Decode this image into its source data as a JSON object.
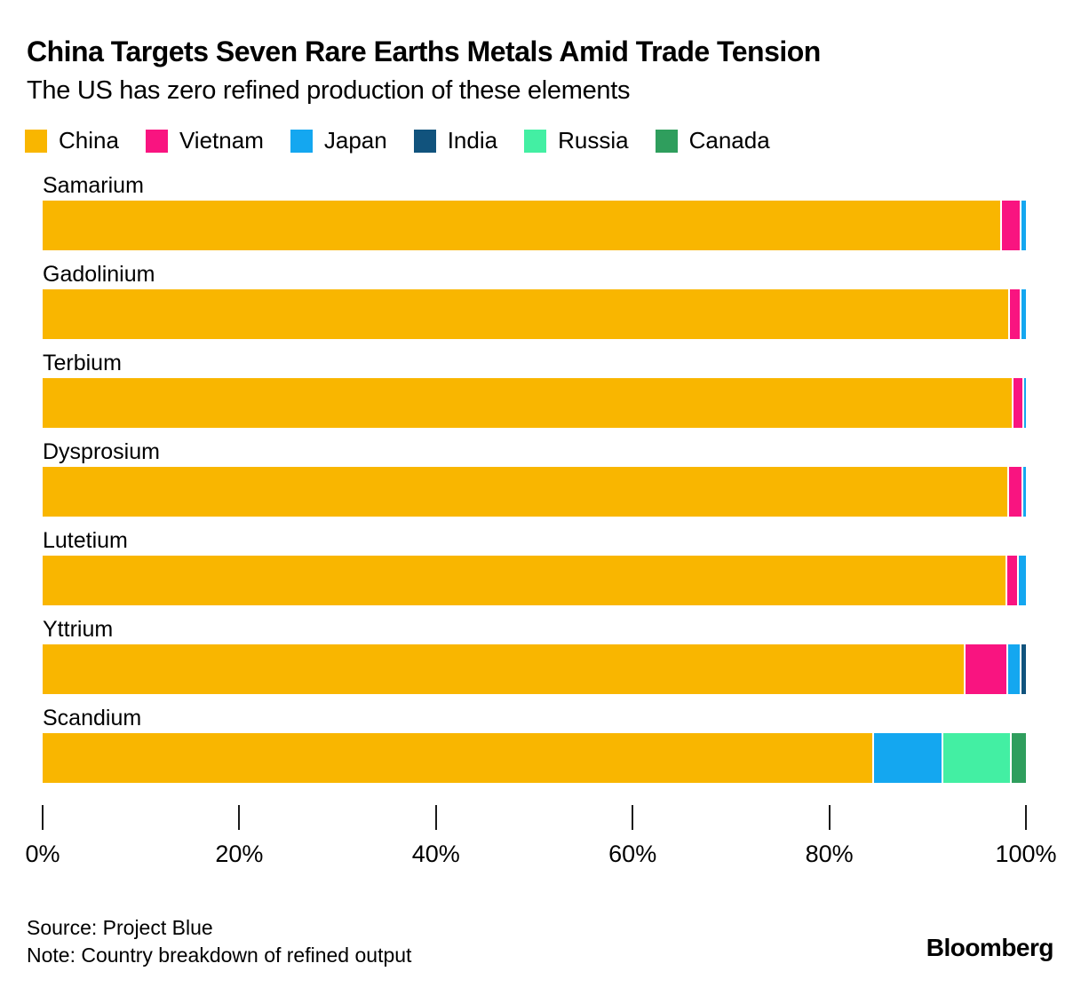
{
  "header": {
    "title": "China Targets Seven Rare Earths Metals Amid Trade Tension",
    "subtitle": "The US has zero refined production of these elements"
  },
  "legend": {
    "items": [
      {
        "label": "China",
        "color": "#F9B600"
      },
      {
        "label": "Vietnam",
        "color": "#F91480"
      },
      {
        "label": "Japan",
        "color": "#14A7F0"
      },
      {
        "label": "India",
        "color": "#11537D"
      },
      {
        "label": "Russia",
        "color": "#43EFA3"
      },
      {
        "label": "Canada",
        "color": "#2F9E5D"
      }
    ]
  },
  "chart_data": {
    "type": "bar",
    "orientation": "horizontal",
    "stacked": true,
    "unit": "%",
    "xlim": [
      0,
      100
    ],
    "grid": false,
    "legend_position": "top",
    "x_ticks": [
      {
        "label": "0%",
        "value": 0
      },
      {
        "label": "20%",
        "value": 20
      },
      {
        "label": "40%",
        "value": 40
      },
      {
        "label": "60%",
        "value": 60
      },
      {
        "label": "80%",
        "value": 80
      },
      {
        "label": "100%",
        "value": 100
      }
    ],
    "categories": [
      "Samarium",
      "Gadolinium",
      "Terbium",
      "Dysprosium",
      "Lutetium",
      "Yttrium",
      "Scandium"
    ],
    "rows": [
      {
        "label": "Samarium",
        "segments": [
          {
            "country": "China",
            "value": 97.5
          },
          {
            "country": "Vietnam",
            "value": 2.0
          },
          {
            "country": "Japan",
            "value": 0.5
          }
        ]
      },
      {
        "label": "Gadolinium",
        "segments": [
          {
            "country": "China",
            "value": 98.3
          },
          {
            "country": "Vietnam",
            "value": 1.2
          },
          {
            "country": "Japan",
            "value": 0.5
          }
        ]
      },
      {
        "label": "Terbium",
        "segments": [
          {
            "country": "China",
            "value": 98.6
          },
          {
            "country": "Vietnam",
            "value": 1.1
          },
          {
            "country": "Japan",
            "value": 0.3
          }
        ]
      },
      {
        "label": "Dysprosium",
        "segments": [
          {
            "country": "China",
            "value": 98.2
          },
          {
            "country": "Vietnam",
            "value": 1.4
          },
          {
            "country": "Japan",
            "value": 0.4
          }
        ]
      },
      {
        "label": "Lutetium",
        "segments": [
          {
            "country": "China",
            "value": 98.0
          },
          {
            "country": "Vietnam",
            "value": 1.2
          },
          {
            "country": "Japan",
            "value": 0.8
          }
        ]
      },
      {
        "label": "Yttrium",
        "segments": [
          {
            "country": "China",
            "value": 93.8
          },
          {
            "country": "Vietnam",
            "value": 4.3
          },
          {
            "country": "Japan",
            "value": 1.4
          },
          {
            "country": "India",
            "value": 0.5
          }
        ]
      },
      {
        "label": "Scandium",
        "segments": [
          {
            "country": "China",
            "value": 84.5
          },
          {
            "country": "Japan",
            "value": 7.0
          },
          {
            "country": "Russia",
            "value": 7.0
          },
          {
            "country": "Canada",
            "value": 1.5
          }
        ]
      }
    ]
  },
  "footer": {
    "source": "Source: Project Blue",
    "note": "Note: Country breakdown of refined output",
    "brand": "Bloomberg"
  }
}
